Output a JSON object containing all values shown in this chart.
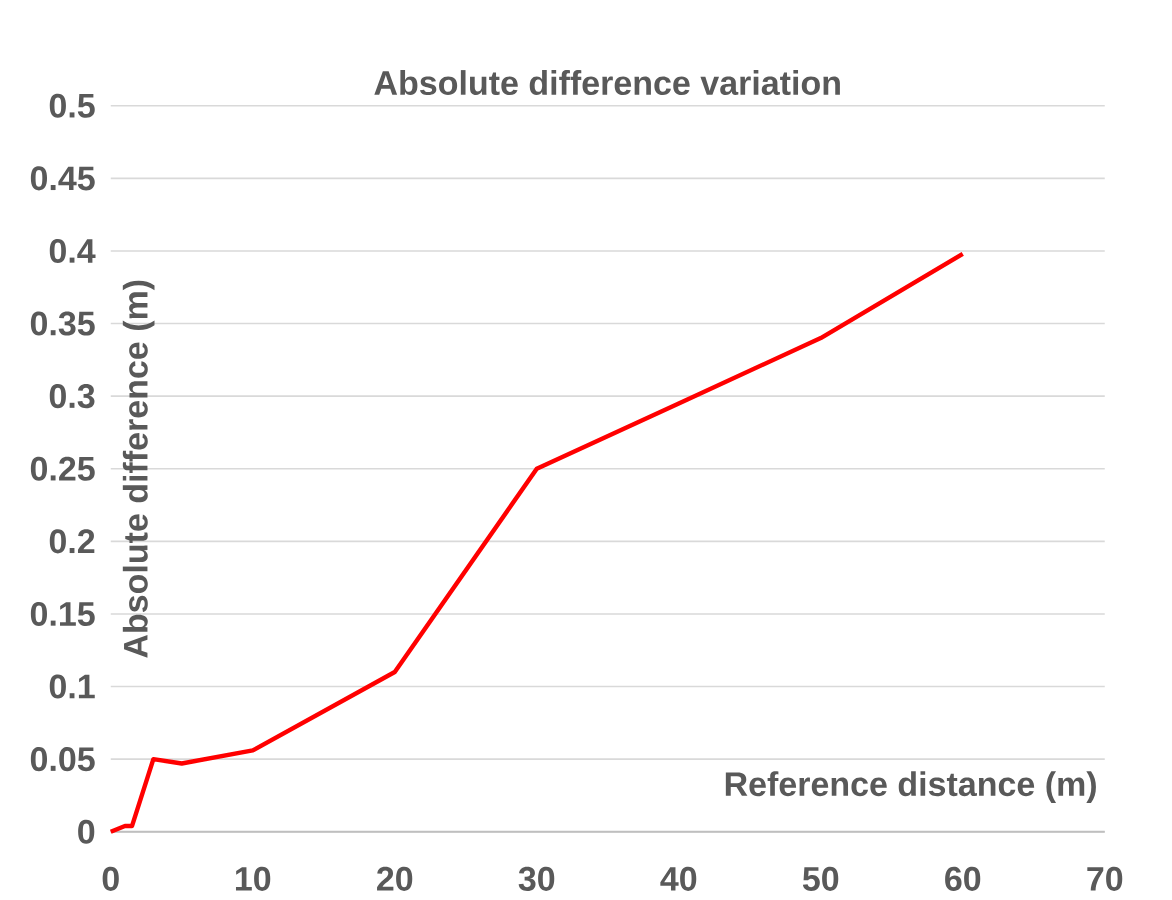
{
  "chart_data": {
    "type": "line",
    "title": "Absolute difference variation",
    "xlabel": "Reference distance (m)",
    "ylabel": "Absolute difference (m)",
    "x": [
      0,
      1,
      1.5,
      3,
      5,
      10,
      20,
      30,
      40,
      50,
      60
    ],
    "series": [
      {
        "color": "#ff0000",
        "values": [
          0,
          0.004,
          0.004,
          0.05,
          0.047,
          0.056,
          0.11,
          0.25,
          0.295,
          0.34,
          0.398
        ]
      }
    ],
    "xlim": [
      0,
      70
    ],
    "ylim": [
      0,
      0.5
    ],
    "xticks": [
      0,
      10,
      20,
      30,
      40,
      50,
      60,
      70
    ],
    "yticks": [
      0,
      0.05,
      0.1,
      0.15,
      0.2,
      0.25,
      0.3,
      0.35,
      0.4,
      0.45,
      0.5
    ],
    "grid": "y",
    "marker": "none",
    "line_style": "solid"
  }
}
